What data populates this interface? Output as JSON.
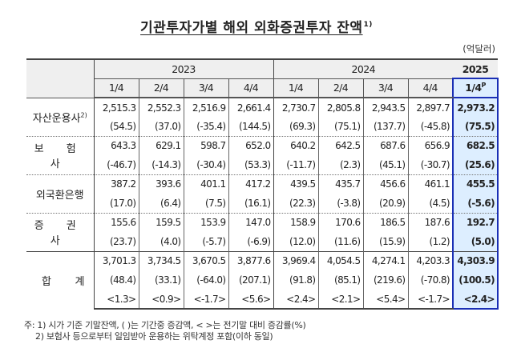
{
  "title": {
    "text": "기관투자가별 해외 외화증권투자 잔액",
    "footnote_mark": "1)"
  },
  "unit": "(억달러)",
  "header": {
    "years": [
      {
        "label": "2023",
        "span": 4
      },
      {
        "label": "2024",
        "span": 4
      },
      {
        "label": "2025",
        "span": 1
      }
    ],
    "quarters": [
      "1/4",
      "2/4",
      "3/4",
      "4/4",
      "1/4",
      "2/4",
      "3/4",
      "4/4"
    ],
    "latest_quarter": "1/4",
    "latest_quarter_mark": "P"
  },
  "rows": [
    {
      "label": "자산운용사",
      "label_mark": "2)",
      "balance": [
        "2,515.3",
        "2,552.3",
        "2,516.9",
        "2,661.4",
        "2,730.7",
        "2,805.8",
        "2,943.5",
        "2,897.7",
        "2,973.2"
      ],
      "change": [
        "(54.5)",
        "(37.0)",
        "(-35.4)",
        "(144.5)",
        "(69.3)",
        "(75.1)",
        "(137.7)",
        "(-45.8)",
        "(75.5)"
      ]
    },
    {
      "label": "보 험 사",
      "balance": [
        "643.3",
        "629.1",
        "598.7",
        "652.0",
        "640.2",
        "642.5",
        "687.6",
        "656.9",
        "682.5"
      ],
      "change": [
        "(-46.7)",
        "(-14.3)",
        "(-30.4)",
        "(53.3)",
        "(-11.7)",
        "(2.3)",
        "(45.1)",
        "(-30.7)",
        "(25.6)"
      ]
    },
    {
      "label": "외국환은행",
      "balance": [
        "387.2",
        "393.6",
        "401.1",
        "417.2",
        "439.5",
        "435.7",
        "456.6",
        "461.1",
        "455.5"
      ],
      "change": [
        "(17.0)",
        "(6.4)",
        "(7.5)",
        "(16.1)",
        "(22.3)",
        "(-3.8)",
        "(20.9)",
        "(4.5)",
        "(-5.6)"
      ]
    },
    {
      "label": "증 권 사",
      "balance": [
        "155.6",
        "159.5",
        "153.9",
        "147.0",
        "158.9",
        "170.6",
        "186.5",
        "187.6",
        "192.7"
      ],
      "change": [
        "(23.7)",
        "(4.0)",
        "(-5.7)",
        "(-6.9)",
        "(12.0)",
        "(11.6)",
        "(15.9)",
        "(1.2)",
        "(5.0)"
      ]
    }
  ],
  "total": {
    "label_left": "합",
    "label_right": "계",
    "balance": [
      "3,701.3",
      "3,734.5",
      "3,670.5",
      "3,877.6",
      "3,969.4",
      "4,054.5",
      "4,274.1",
      "4,203.3",
      "4,303.9"
    ],
    "change": [
      "(48.4)",
      "(33.1)",
      "(-64.0)",
      "(207.1)",
      "(91.8)",
      "(85.1)",
      "(219.6)",
      "(-70.8)",
      "(100.5)"
    ],
    "rate": [
      "<1.3>",
      "<0.9>",
      "<-1.7>",
      "<5.6>",
      "<2.4>",
      "<2.1>",
      "<5.4>",
      "<-1.7>",
      "<2.4>"
    ]
  },
  "notes": [
    "주: 1) 시가 기준 기말잔액, (    )는 기간중 증감액, <   >는 전기말 대비 증감률(%)",
    "2) 보험사 등으로부터 일임받아 운용하는 위탁계정 포함(이하 동일)"
  ],
  "colors": {
    "highlight_bg": "#ddeeff",
    "highlight_border": "#1a2fb5",
    "header_bg": "#efefef"
  }
}
